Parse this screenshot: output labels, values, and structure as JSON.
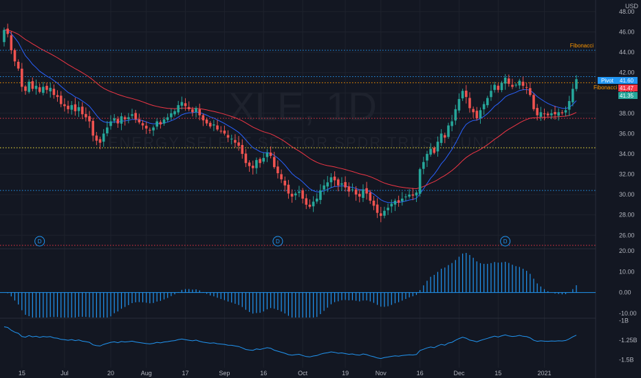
{
  "watermark": {
    "symbol": "XLE, 1D",
    "description": "ENERGY SELECT SECTOR SPDR TRUST FUND"
  },
  "currency": "USD",
  "colors": {
    "background": "#131722",
    "up": "#26a69a",
    "down": "#ef5350",
    "grid": "#1e222d",
    "axis_text": "#b2b5be",
    "ma_fast": "#2962ff",
    "ma_slow": "#f23645",
    "oscillator": "#2196f3"
  },
  "price_labels": {
    "pivot": {
      "text": "Pivot",
      "value": "41.60",
      "color": "#2196f3"
    },
    "fib": {
      "text": "Fibonacci",
      "value": "41.47",
      "color": "#f23645"
    },
    "last": {
      "value": "41.35",
      "color": "#26a69a"
    }
  },
  "levels": [
    {
      "name": "fibonacci-upper",
      "price": 44.2,
      "color": "#2196f3",
      "label": "Fibonacci",
      "label_color": "#ff9800"
    },
    {
      "name": "pivot",
      "price": 41.6,
      "color": "#2196f3"
    },
    {
      "name": "fibonacci-lower",
      "price": 41.0,
      "color": "#ff9800"
    },
    {
      "name": "level-37-5",
      "price": 37.5,
      "color": "#f23645"
    },
    {
      "name": "level-34-6",
      "price": 34.6,
      "color": "#ffeb3b"
    },
    {
      "name": "level-30-4",
      "price": 30.4,
      "color": "#2196f3"
    },
    {
      "name": "pane-separator",
      "price": 25.0,
      "color": "#f23645"
    }
  ],
  "dividends": [
    {
      "label": "D",
      "date_index": 10
    },
    {
      "label": "D",
      "date_index": 77
    },
    {
      "label": "D",
      "date_index": 141
    }
  ],
  "chart_data": {
    "type": "candlestick",
    "x_ticks": [
      "15",
      "Jul",
      "20",
      "Aug",
      "17",
      "Sep",
      "16",
      "Oct",
      "19",
      "Nov",
      "16",
      "Dec",
      "15",
      "2021"
    ],
    "x_tick_index": [
      5,
      17,
      30,
      40,
      51,
      62,
      73,
      84,
      96,
      106,
      117,
      128,
      139,
      152
    ],
    "price_axis": {
      "ticks": [
        48,
        46,
        44,
        42,
        40,
        38,
        36,
        34,
        32,
        30,
        28,
        26
      ],
      "ylim": [
        24.8,
        48.6
      ]
    },
    "histogram_axis": {
      "ticks": [
        "20.00",
        "10.00",
        "0.00",
        "-10.00"
      ],
      "ylim": [
        -12,
        21
      ]
    },
    "line_axis": {
      "ticks": [
        "-1B",
        "-1.25B",
        "-1.5B"
      ],
      "ylim": [
        -1.6,
        -0.98
      ]
    },
    "close": [
      46.2,
      45.8,
      44.2,
      43.1,
      42.4,
      40.6,
      40.2,
      41.1,
      40.4,
      40.7,
      40.1,
      40.6,
      40.3,
      40.5,
      39.8,
      39.6,
      38.9,
      38.7,
      38.4,
      38.8,
      38.2,
      38.6,
      37.9,
      37.6,
      37.2,
      35.8,
      35.3,
      35.1,
      36.0,
      36.6,
      37.2,
      37.5,
      37.0,
      37.7,
      37.4,
      37.6,
      37.9,
      37.4,
      37.1,
      36.8,
      36.5,
      36.3,
      36.6,
      37.2,
      36.9,
      37.4,
      37.6,
      38.0,
      38.2,
      38.8,
      39.1,
      38.7,
      38.4,
      38.1,
      38.5,
      37.8,
      37.3,
      37.0,
      36.7,
      36.9,
      36.4,
      36.2,
      36.0,
      35.6,
      35.5,
      35.1,
      34.8,
      34.0,
      33.1,
      32.8,
      32.6,
      33.4,
      33.1,
      33.6,
      34.1,
      33.8,
      32.7,
      32.1,
      31.5,
      30.9,
      30.1,
      29.8,
      30.1,
      30.3,
      29.6,
      29.0,
      28.8,
      29.3,
      29.6,
      30.4,
      30.9,
      31.2,
      31.7,
      31.4,
      30.9,
      31.1,
      30.7,
      30.3,
      30.5,
      30.0,
      29.8,
      30.5,
      30.1,
      29.4,
      28.9,
      28.2,
      27.9,
      28.4,
      28.7,
      29.1,
      29.4,
      29.2,
      29.6,
      29.8,
      30.0,
      29.9,
      30.2,
      32.5,
      33.2,
      34.0,
      34.5,
      34.1,
      35.2,
      36.0,
      35.6,
      36.8,
      37.2,
      38.4,
      39.4,
      40.2,
      39.6,
      38.5,
      38.1,
      37.5,
      38.3,
      38.9,
      39.5,
      40.2,
      40.8,
      40.3,
      41.0,
      41.5,
      40.9,
      40.6,
      40.8,
      41.2,
      40.7,
      40.5,
      39.8,
      38.4,
      37.8,
      38.1,
      37.9,
      37.8,
      38.0,
      37.9,
      38.1,
      38.0,
      38.3,
      39.2,
      40.4,
      41.35
    ],
    "open_offsets_note": "",
    "series": [
      {
        "name": "",
        "type": "candlestick"
      },
      {
        "name": "",
        "type": "line",
        "role": "fast moving average"
      },
      {
        "name": "",
        "type": "line",
        "role": "slow moving average"
      },
      {
        "name": "",
        "type": "histogram"
      },
      {
        "name": "",
        "type": "line",
        "role": "volume oscillator"
      }
    ],
    "title": "",
    "xlabel": "",
    "ylabel": "",
    "grid": true,
    "legend": "none"
  }
}
